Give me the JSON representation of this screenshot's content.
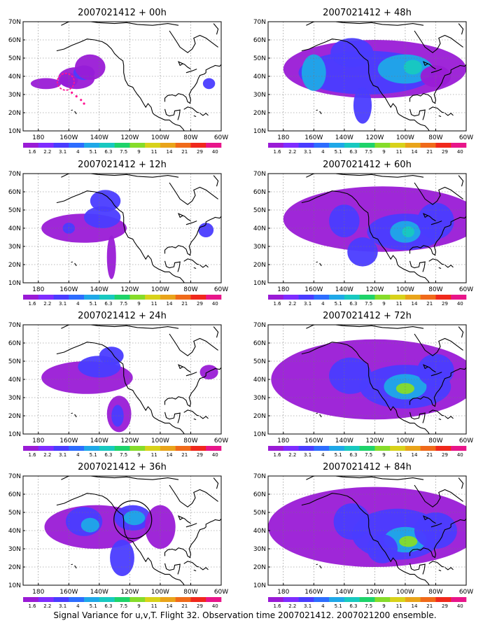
{
  "caption": "Signal Variance for u,v,T. Flight 32. Observation time 2007021412. 2007021200 ensemble.",
  "axes": {
    "lat_labels": [
      "70N",
      "60N",
      "50N",
      "40N",
      "30N",
      "20N",
      "10N"
    ],
    "lon_labels": [
      "180",
      "160W",
      "140W",
      "120W",
      "100W",
      "80W",
      "60W"
    ]
  },
  "colorbar": {
    "colors": [
      "#9a1bd6",
      "#7f2cff",
      "#4a3cff",
      "#2d6dff",
      "#1fa8e8",
      "#18c9c0",
      "#1ed36a",
      "#86dc2a",
      "#d8d21a",
      "#e9a41a",
      "#f06a1a",
      "#f0281c",
      "#e8158a"
    ],
    "labels": [
      "1.6",
      "2.2",
      "3.1",
      "4",
      "5.1",
      "6.3",
      "7.5",
      "9",
      "11",
      "14",
      "21",
      "29",
      "40"
    ]
  },
  "panels": [
    {
      "title": "2007021412 + 00h",
      "marker": "dashed-magenta-circle-track"
    },
    {
      "title": "2007021412 + 48h"
    },
    {
      "title": "2007021412 + 12h"
    },
    {
      "title": "2007021412 + 60h"
    },
    {
      "title": "2007021412 + 24h"
    },
    {
      "title": "2007021412 + 72h"
    },
    {
      "title": "2007021412 + 36h",
      "marker": "black-circle"
    },
    {
      "title": "2007021412 + 84h"
    }
  ]
}
